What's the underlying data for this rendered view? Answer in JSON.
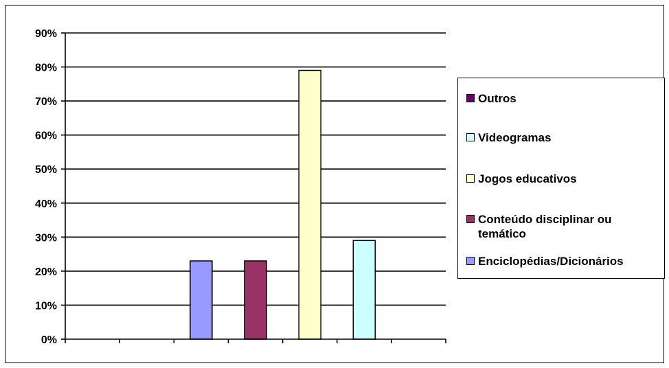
{
  "chart_data": {
    "type": "bar",
    "categories": [
      "",
      "",
      "",
      "",
      "",
      "",
      ""
    ],
    "series": [
      {
        "name": "Outros",
        "color": "#660066",
        "values": [
          null,
          null,
          null,
          null,
          null,
          null,
          null
        ]
      },
      {
        "name": "Videogramas",
        "color": "#ccffff",
        "values": [
          null,
          null,
          null,
          null,
          null,
          29,
          null
        ]
      },
      {
        "name": "Jogos educativos",
        "color": "#ffffcc",
        "values": [
          null,
          null,
          null,
          null,
          79,
          null,
          null
        ]
      },
      {
        "name": "Conteúdo disciplinar ou temático",
        "color": "#993366",
        "values": [
          null,
          null,
          null,
          23,
          null,
          null,
          null
        ]
      },
      {
        "name": "Enciclopédias/Dicionários",
        "color": "#9999ff",
        "values": [
          null,
          null,
          23,
          null,
          null,
          null,
          null
        ]
      }
    ],
    "y_ticks": [
      "0%",
      "10%",
      "20%",
      "30%",
      "40%",
      "50%",
      "60%",
      "70%",
      "80%",
      "90%"
    ],
    "ylim": [
      0,
      90
    ],
    "unit": "%",
    "grid": true,
    "legend_position": "right",
    "title": "",
    "xlabel": "",
    "ylabel": ""
  },
  "legend": {
    "items": [
      {
        "label": "Outros",
        "color": "#660066"
      },
      {
        "label": "Videogramas",
        "color": "#ccffff"
      },
      {
        "label": "Jogos educativos",
        "color": "#ffffcc"
      },
      {
        "label": "Conteúdo disciplinar ou temático",
        "color": "#993366"
      },
      {
        "label": "Enciclopédias/Dicionários",
        "color": "#9999ff"
      }
    ]
  }
}
